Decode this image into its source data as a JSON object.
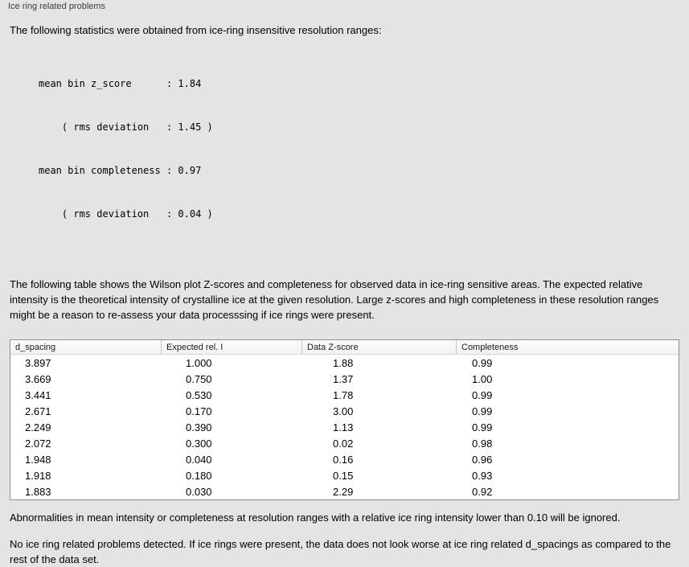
{
  "panel": {
    "title": "Ice ring related problems"
  },
  "intro": "The following statistics were obtained from ice-ring insensitive resolution ranges:",
  "stats": {
    "lines": [
      "mean bin z_score      : 1.84",
      "    ( rms deviation   : 1.45 )",
      "mean bin completeness : 0.97",
      "    ( rms deviation   : 0.04 )"
    ]
  },
  "paragraph": "The following table shows the Wilson plot Z-scores and completeness for observed data in ice-ring sensitive areas. The expected relative intensity is the theoretical intensity of crystalline ice at the given resolution. Large z-scores and high completeness in these resolution ranges might be a reason to re-assess your data processsing if ice rings were present.",
  "table": {
    "headers": [
      "d_spacing",
      "Expected rel. I",
      "Data Z-score",
      "Completeness"
    ],
    "rows": [
      [
        "3.897",
        "1.000",
        "1.88",
        "0.99"
      ],
      [
        "3.669",
        "0.750",
        "1.37",
        "1.00"
      ],
      [
        "3.441",
        "0.530",
        "1.78",
        "0.99"
      ],
      [
        "2.671",
        "0.170",
        "3.00",
        "0.99"
      ],
      [
        "2.249",
        "0.390",
        "1.13",
        "0.99"
      ],
      [
        "2.072",
        "0.300",
        "0.02",
        "0.98"
      ],
      [
        "1.948",
        "0.040",
        "0.16",
        "0.96"
      ],
      [
        "1.918",
        "0.180",
        "0.15",
        "0.93"
      ],
      [
        "1.883",
        "0.030",
        "2.29",
        "0.92"
      ]
    ]
  },
  "footer1": "Abnormalities in mean intensity or completeness at resolution ranges with a relative ice ring intensity lower than 0.10 will be ignored.",
  "footer2": "No ice ring related problems detected. If ice rings were present, the data does not look worse at ice ring related d_spacings as compared to the rest of the data set."
}
